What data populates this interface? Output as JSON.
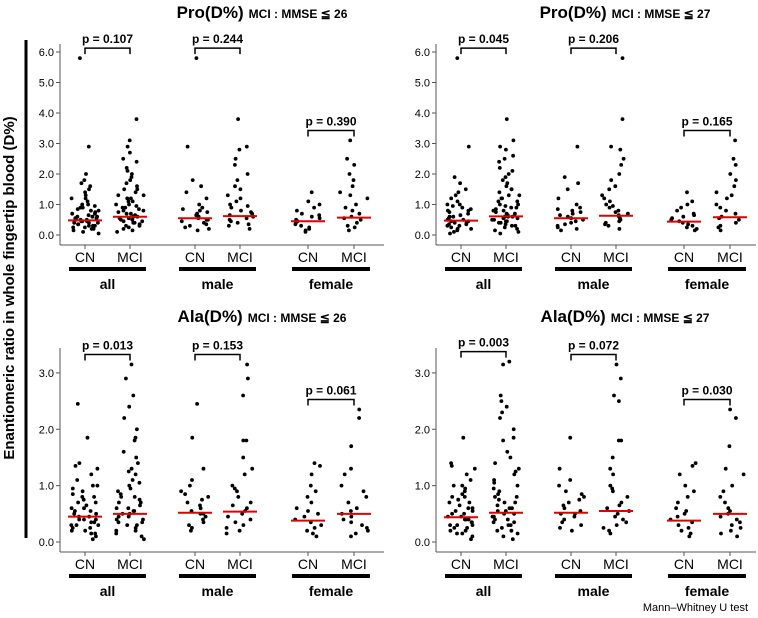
{
  "y_axis_label": "Enantiomeric ratio in whole fingertip blood (D%)",
  "footnote": "Mann–Whitney U test",
  "chart_data": [
    {
      "type": "scatter",
      "title": "Pro(D%)",
      "subtitle": "MCI : MMSE ≦ 26",
      "ylim": [
        0,
        6.0
      ],
      "yticks": [
        "0.0",
        "1.0",
        "2.0",
        "3.0",
        "4.0",
        "5.0",
        "6.0"
      ],
      "xtick_labels": [
        "CN",
        "MCI"
      ],
      "groups": [
        {
          "label": "all",
          "p_value": "p = 0.107",
          "medians": [
            0.48,
            0.6
          ],
          "CN": [
            5.8,
            2.9,
            2.0,
            1.8,
            1.7,
            1.6,
            1.5,
            1.4,
            1.3,
            1.2,
            1.2,
            1.1,
            1.0,
            1.0,
            0.95,
            0.9,
            0.9,
            0.85,
            0.8,
            0.8,
            0.75,
            0.7,
            0.7,
            0.65,
            0.6,
            0.6,
            0.6,
            0.55,
            0.55,
            0.5,
            0.5,
            0.5,
            0.45,
            0.45,
            0.45,
            0.4,
            0.4,
            0.4,
            0.35,
            0.35,
            0.3,
            0.3,
            0.3,
            0.25,
            0.25,
            0.2,
            0.2,
            0.15,
            0.1,
            0.05
          ],
          "MCI": [
            3.8,
            3.1,
            2.9,
            2.7,
            2.5,
            2.4,
            2.2,
            2.1,
            2.0,
            1.9,
            1.8,
            1.7,
            1.6,
            1.5,
            1.5,
            1.4,
            1.3,
            1.3,
            1.2,
            1.2,
            1.1,
            1.1,
            1.0,
            1.0,
            0.95,
            0.9,
            0.9,
            0.85,
            0.8,
            0.8,
            0.75,
            0.7,
            0.7,
            0.65,
            0.6,
            0.6,
            0.6,
            0.55,
            0.55,
            0.5,
            0.5,
            0.45,
            0.45,
            0.4,
            0.4,
            0.35,
            0.3,
            0.3,
            0.25,
            0.2,
            0.15,
            0.1
          ]
        },
        {
          "label": "male",
          "p_value": "p = 0.244",
          "medians": [
            0.55,
            0.62
          ],
          "CN": [
            5.8,
            2.9,
            1.8,
            1.6,
            1.4,
            1.2,
            1.0,
            0.9,
            0.85,
            0.8,
            0.75,
            0.7,
            0.65,
            0.6,
            0.55,
            0.5,
            0.5,
            0.45,
            0.4,
            0.35,
            0.3,
            0.25,
            0.2,
            0.15
          ],
          "MCI": [
            3.8,
            2.9,
            2.8,
            2.5,
            2.3,
            2.0,
            1.8,
            1.6,
            1.5,
            1.3,
            1.2,
            1.1,
            1.0,
            0.95,
            0.9,
            0.8,
            0.75,
            0.7,
            0.65,
            0.6,
            0.55,
            0.5,
            0.45,
            0.4,
            0.35,
            0.3,
            0.2
          ]
        },
        {
          "label": "female",
          "p_value": "p = 0.390",
          "medians": [
            0.45,
            0.57
          ],
          "CN": [
            1.4,
            1.1,
            1.0,
            0.9,
            0.8,
            0.7,
            0.65,
            0.6,
            0.55,
            0.5,
            0.45,
            0.4,
            0.35,
            0.3,
            0.25,
            0.2,
            0.15,
            0.1
          ],
          "MCI": [
            3.1,
            2.5,
            2.3,
            2.0,
            1.8,
            1.6,
            1.4,
            1.3,
            1.2,
            1.0,
            0.9,
            0.8,
            0.7,
            0.6,
            0.55,
            0.5,
            0.4,
            0.3,
            0.25,
            0.15
          ]
        }
      ]
    },
    {
      "type": "scatter",
      "title": "Pro(D%)",
      "subtitle": "MCI : MMSE ≦ 27",
      "ylim": [
        0,
        6.0
      ],
      "yticks": [
        "0.0",
        "1.0",
        "2.0",
        "3.0",
        "4.0",
        "5.0",
        "6.0"
      ],
      "xtick_labels": [
        "CN",
        "MCI"
      ],
      "groups": [
        {
          "label": "all",
          "p_value": "p = 0.045",
          "medians": [
            0.47,
            0.61
          ],
          "CN": [
            5.8,
            2.9,
            1.9,
            1.7,
            1.5,
            1.4,
            1.3,
            1.2,
            1.1,
            1.0,
            1.0,
            0.95,
            0.9,
            0.85,
            0.8,
            0.8,
            0.75,
            0.7,
            0.65,
            0.6,
            0.6,
            0.55,
            0.5,
            0.5,
            0.45,
            0.45,
            0.4,
            0.4,
            0.35,
            0.35,
            0.3,
            0.3,
            0.25,
            0.2,
            0.2,
            0.15,
            0.1,
            0.05
          ],
          "MCI": [
            3.8,
            3.1,
            2.9,
            2.8,
            2.6,
            2.5,
            2.4,
            2.2,
            2.1,
            2.0,
            1.9,
            1.8,
            1.7,
            1.6,
            1.5,
            1.5,
            1.4,
            1.3,
            1.3,
            1.2,
            1.2,
            1.1,
            1.1,
            1.0,
            1.0,
            0.95,
            0.9,
            0.9,
            0.85,
            0.8,
            0.8,
            0.75,
            0.7,
            0.7,
            0.65,
            0.6,
            0.6,
            0.6,
            0.55,
            0.55,
            0.5,
            0.5,
            0.45,
            0.45,
            0.4,
            0.4,
            0.35,
            0.3,
            0.3,
            0.25,
            0.2,
            0.15,
            0.1,
            0.05
          ]
        },
        {
          "label": "male",
          "p_value": "p = 0.206",
          "medians": [
            0.55,
            0.63
          ],
          "CN": [
            2.9,
            1.9,
            1.7,
            1.5,
            1.2,
            1.0,
            0.9,
            0.85,
            0.8,
            0.75,
            0.7,
            0.65,
            0.6,
            0.55,
            0.5,
            0.45,
            0.4,
            0.35,
            0.3,
            0.25,
            0.2,
            0.15
          ],
          "MCI": [
            5.8,
            3.8,
            2.9,
            2.8,
            2.5,
            2.3,
            2.0,
            1.8,
            1.6,
            1.5,
            1.3,
            1.2,
            1.1,
            1.0,
            0.95,
            0.9,
            0.8,
            0.75,
            0.7,
            0.65,
            0.6,
            0.55,
            0.5,
            0.45,
            0.4,
            0.35,
            0.3,
            0.2
          ]
        },
        {
          "label": "female",
          "p_value": "p = 0.165",
          "medians": [
            0.44,
            0.58
          ],
          "CN": [
            1.4,
            1.1,
            1.0,
            0.9,
            0.8,
            0.7,
            0.65,
            0.6,
            0.55,
            0.5,
            0.45,
            0.4,
            0.35,
            0.3,
            0.25,
            0.2,
            0.15
          ],
          "MCI": [
            3.1,
            2.5,
            2.3,
            2.0,
            1.8,
            1.6,
            1.4,
            1.3,
            1.2,
            1.0,
            0.9,
            0.8,
            0.7,
            0.6,
            0.55,
            0.5,
            0.4,
            0.3,
            0.25,
            0.15
          ]
        }
      ]
    },
    {
      "type": "scatter",
      "title": "Ala(D%)",
      "subtitle": "MCI : MMSE ≦ 26",
      "ylim": [
        0,
        3.3
      ],
      "yticks": [
        "0.0",
        "1.0",
        "2.0",
        "3.0"
      ],
      "xtick_labels": [
        "CN",
        "MCI"
      ],
      "groups": [
        {
          "label": "all",
          "p_value": "p = 0.013",
          "medians": [
            0.45,
            0.5
          ],
          "CN": [
            2.45,
            1.85,
            1.4,
            1.35,
            1.3,
            1.2,
            1.1,
            1.0,
            1.0,
            0.95,
            0.9,
            0.85,
            0.8,
            0.8,
            0.75,
            0.7,
            0.7,
            0.65,
            0.6,
            0.6,
            0.55,
            0.55,
            0.5,
            0.5,
            0.45,
            0.45,
            0.4,
            0.4,
            0.4,
            0.35,
            0.35,
            0.3,
            0.3,
            0.3,
            0.25,
            0.25,
            0.2,
            0.2,
            0.15,
            0.15,
            0.1,
            0.05
          ],
          "MCI": [
            3.15,
            2.9,
            2.6,
            2.4,
            2.2,
            2.0,
            1.85,
            1.8,
            1.6,
            1.5,
            1.4,
            1.3,
            1.25,
            1.2,
            1.1,
            1.05,
            1.0,
            0.95,
            0.9,
            0.85,
            0.8,
            0.8,
            0.75,
            0.7,
            0.7,
            0.65,
            0.6,
            0.6,
            0.55,
            0.55,
            0.5,
            0.5,
            0.45,
            0.45,
            0.4,
            0.4,
            0.35,
            0.35,
            0.3,
            0.3,
            0.25,
            0.2,
            0.2,
            0.15,
            0.1,
            0.05
          ]
        },
        {
          "label": "male",
          "p_value": "p = 0.153",
          "medians": [
            0.52,
            0.54
          ],
          "CN": [
            2.45,
            1.85,
            1.3,
            1.1,
            1.0,
            0.9,
            0.85,
            0.8,
            0.75,
            0.7,
            0.65,
            0.6,
            0.55,
            0.5,
            0.5,
            0.45,
            0.4,
            0.35,
            0.3,
            0.25,
            0.2
          ],
          "MCI": [
            3.15,
            2.9,
            2.6,
            1.8,
            1.8,
            1.5,
            1.3,
            1.2,
            1.0,
            0.95,
            0.9,
            0.8,
            0.7,
            0.65,
            0.6,
            0.55,
            0.5,
            0.45,
            0.4,
            0.35,
            0.3,
            0.25,
            0.2,
            0.15
          ]
        },
        {
          "label": "female",
          "p_value": "p = 0.061",
          "medians": [
            0.38,
            0.5
          ],
          "CN": [
            1.4,
            1.35,
            1.2,
            1.0,
            0.9,
            0.8,
            0.7,
            0.6,
            0.55,
            0.5,
            0.45,
            0.4,
            0.35,
            0.3,
            0.25,
            0.2,
            0.15,
            0.1
          ],
          "MCI": [
            2.35,
            2.2,
            1.7,
            1.3,
            1.2,
            1.0,
            0.9,
            0.8,
            0.7,
            0.6,
            0.55,
            0.5,
            0.45,
            0.4,
            0.35,
            0.3,
            0.25,
            0.2,
            0.15,
            0.1
          ]
        }
      ]
    },
    {
      "type": "scatter",
      "title": "Ala(D%)",
      "subtitle": "MCI : MMSE ≦ 27",
      "ylim": [
        0,
        3.3
      ],
      "yticks": [
        "0.0",
        "1.0",
        "2.0",
        "3.0"
      ],
      "xtick_labels": [
        "CN",
        "MCI"
      ],
      "groups": [
        {
          "label": "all",
          "p_value": "p = 0.003",
          "medians": [
            0.44,
            0.52
          ],
          "CN": [
            1.85,
            1.4,
            1.35,
            1.3,
            1.2,
            1.1,
            1.0,
            1.0,
            0.95,
            0.9,
            0.85,
            0.8,
            0.8,
            0.75,
            0.7,
            0.7,
            0.65,
            0.6,
            0.6,
            0.55,
            0.55,
            0.5,
            0.5,
            0.45,
            0.45,
            0.4,
            0.4,
            0.4,
            0.35,
            0.35,
            0.3,
            0.3,
            0.3,
            0.25,
            0.25,
            0.2,
            0.2,
            0.15,
            0.15,
            0.1,
            0.05
          ],
          "MCI": [
            3.2,
            3.15,
            2.6,
            2.5,
            2.4,
            2.3,
            2.2,
            2.0,
            1.85,
            1.8,
            1.6,
            1.5,
            1.4,
            1.3,
            1.25,
            1.2,
            1.1,
            1.05,
            1.0,
            0.95,
            0.9,
            0.85,
            0.8,
            0.8,
            0.75,
            0.7,
            0.7,
            0.65,
            0.6,
            0.6,
            0.55,
            0.55,
            0.5,
            0.5,
            0.45,
            0.45,
            0.4,
            0.4,
            0.35,
            0.35,
            0.3,
            0.3,
            0.25,
            0.2,
            0.2,
            0.15,
            0.1,
            0.05
          ]
        },
        {
          "label": "male",
          "p_value": "p = 0.072",
          "medians": [
            0.52,
            0.55
          ],
          "CN": [
            1.85,
            1.3,
            1.1,
            1.0,
            0.9,
            0.85,
            0.8,
            0.75,
            0.7,
            0.65,
            0.6,
            0.55,
            0.5,
            0.5,
            0.45,
            0.4,
            0.35,
            0.3,
            0.25,
            0.2
          ],
          "MCI": [
            3.15,
            2.9,
            2.6,
            2.5,
            1.8,
            1.8,
            1.5,
            1.3,
            1.2,
            1.0,
            0.95,
            0.9,
            0.8,
            0.7,
            0.65,
            0.6,
            0.55,
            0.5,
            0.45,
            0.4,
            0.35,
            0.3,
            0.25,
            0.2,
            0.15
          ]
        },
        {
          "label": "female",
          "p_value": "p = 0.030",
          "medians": [
            0.38,
            0.5
          ],
          "CN": [
            1.4,
            1.35,
            1.2,
            1.0,
            0.9,
            0.8,
            0.7,
            0.6,
            0.55,
            0.5,
            0.45,
            0.4,
            0.35,
            0.3,
            0.25,
            0.2,
            0.15,
            0.1
          ],
          "MCI": [
            2.35,
            2.2,
            1.7,
            1.3,
            1.2,
            1.0,
            0.9,
            0.8,
            0.7,
            0.6,
            0.55,
            0.5,
            0.45,
            0.4,
            0.35,
            0.3,
            0.25,
            0.2,
            0.15,
            0.1
          ]
        }
      ]
    }
  ]
}
